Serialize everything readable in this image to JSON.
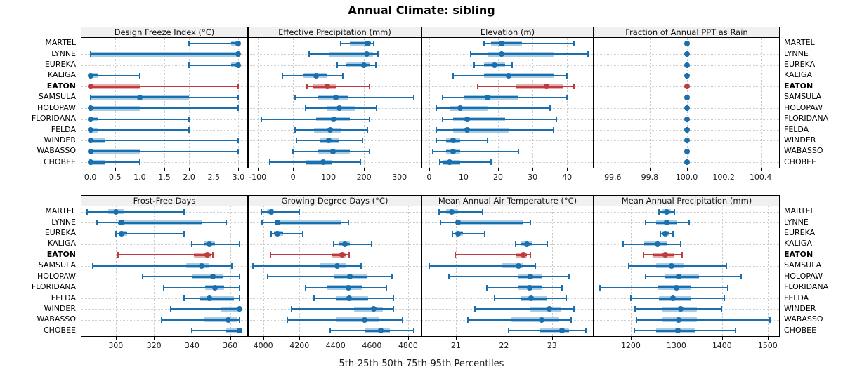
{
  "title": "Annual Climate: sibling",
  "caption": "5th-25th-50th-75th-95th Percentiles",
  "colors": {
    "series_blue": "#1a6fae",
    "series_blue_light": "#a9cce5",
    "highlight_red": "#c03b3d",
    "highlight_red_light": "#e5aeae",
    "strip_bg": "#f0f0f0",
    "grid": "#c9c9c9",
    "border": "#000000"
  },
  "chart_data": {
    "type": "trellis-percentile-dotplot",
    "title": "Annual Climate: sibling",
    "caption": "5th-25th-50th-75th-95th Percentiles",
    "percentile_order": [
      "p5",
      "p25",
      "p50",
      "p75",
      "p95"
    ],
    "legend_position": "none",
    "grid": "dotted",
    "highlight": "EATON",
    "stations": [
      "MARTEL",
      "LYNNE",
      "EUREKA",
      "KALIGA",
      "EATON",
      "SAMSULA",
      "HOLOPAW",
      "FLORIDANA",
      "FELDA",
      "WINDER",
      "WABASSO",
      "CHOBEE"
    ],
    "panels": [
      {
        "title": "Design Freeze Index (°C)",
        "ticks": [
          0,
          0.5,
          1,
          1.5,
          2,
          2.5,
          3
        ],
        "tick_labels": [
          "0.0",
          "0.5",
          "1.0",
          "1.5",
          "2.0",
          "2.5",
          "3.0"
        ],
        "domain": [
          -0.18,
          3.18
        ],
        "values": [
          [
            2,
            2.85,
            3,
            3,
            3
          ],
          [
            0,
            0,
            3,
            3,
            3
          ],
          [
            2,
            2.85,
            3,
            3,
            3
          ],
          [
            0,
            0,
            0,
            0.15,
            1
          ],
          [
            0,
            0,
            0,
            1,
            3
          ],
          [
            0,
            0,
            1,
            2,
            3
          ],
          [
            0,
            0,
            0,
            1,
            3
          ],
          [
            0,
            0,
            0,
            0.15,
            2
          ],
          [
            0,
            0,
            0,
            0.15,
            2
          ],
          [
            0,
            0,
            0,
            0.3,
            3
          ],
          [
            0,
            0,
            0,
            1,
            3
          ],
          [
            0,
            0,
            0,
            0.3,
            1
          ]
        ]
      },
      {
        "title": "Effective Precipitation (mm)",
        "ticks": [
          -100,
          0,
          100,
          200,
          300
        ],
        "tick_labels": [
          "-100",
          "0",
          "100",
          "200",
          "300"
        ],
        "domain": [
          -125,
          360
        ],
        "values": [
          [
            135,
            160,
            210,
            220,
            228
          ],
          [
            45,
            100,
            207,
            225,
            240
          ],
          [
            125,
            150,
            200,
            215,
            233
          ],
          [
            -30,
            30,
            65,
            95,
            140
          ],
          [
            40,
            55,
            97,
            120,
            215
          ],
          [
            5,
            70,
            120,
            155,
            340
          ],
          [
            35,
            95,
            130,
            175,
            235
          ],
          [
            -90,
            65,
            115,
            160,
            215
          ],
          [
            5,
            60,
            105,
            135,
            210
          ],
          [
            10,
            75,
            100,
            130,
            195
          ],
          [
            0,
            70,
            113,
            160,
            215
          ],
          [
            -65,
            35,
            85,
            110,
            190
          ]
        ]
      },
      {
        "title": "Elevation (m)",
        "ticks": [
          0,
          10,
          20,
          30,
          40
        ],
        "tick_labels": [
          "0",
          "10",
          "20",
          "30",
          "40"
        ],
        "domain": [
          -2,
          47.5
        ],
        "values": [
          [
            16,
            18,
            21,
            27,
            42
          ],
          [
            12,
            17,
            21,
            36,
            46
          ],
          [
            13,
            16,
            19,
            22,
            24
          ],
          [
            7,
            16,
            23,
            36,
            40
          ],
          [
            14,
            25,
            34,
            39,
            42
          ],
          [
            4,
            10,
            17,
            26,
            40
          ],
          [
            2,
            6,
            9,
            17,
            35
          ],
          [
            4,
            7,
            11,
            22,
            37
          ],
          [
            2,
            7,
            11,
            23,
            36
          ],
          [
            2,
            5,
            7,
            9,
            17
          ],
          [
            1,
            5,
            7,
            9,
            26
          ],
          [
            3,
            4,
            6,
            9,
            18
          ]
        ]
      },
      {
        "title": "Fraction of Annual PPT as Rain",
        "ticks": [
          99.6,
          99.8,
          100,
          100.2,
          100.4
        ],
        "tick_labels": [
          "99.6",
          "99.8",
          "100.0",
          "100.2",
          "100.4"
        ],
        "domain": [
          99.5,
          100.5
        ],
        "values": [
          [
            100,
            100,
            100,
            100,
            100
          ],
          [
            100,
            100,
            100,
            100,
            100
          ],
          [
            100,
            100,
            100,
            100,
            100
          ],
          [
            100,
            100,
            100,
            100,
            100
          ],
          [
            100,
            100,
            100,
            100,
            100
          ],
          [
            100,
            100,
            100,
            100,
            100
          ],
          [
            100,
            100,
            100,
            100,
            100
          ],
          [
            100,
            100,
            100,
            100,
            100
          ],
          [
            100,
            100,
            100,
            100,
            100
          ],
          [
            100,
            100,
            100,
            100,
            100
          ],
          [
            100,
            100,
            100,
            100,
            100
          ],
          [
            100,
            100,
            100,
            100,
            100
          ]
        ]
      },
      {
        "title": "Frost-Free Days",
        "ticks": [
          300,
          320,
          340,
          360
        ],
        "tick_labels": [
          "300",
          "320",
          "340",
          "360"
        ],
        "domain": [
          282,
          369
        ],
        "values": [
          [
            285,
            296,
            300,
            304,
            336
          ],
          [
            290,
            301,
            303,
            345,
            358
          ],
          [
            300,
            302,
            303,
            306,
            336
          ],
          [
            340,
            346,
            349,
            352,
            365
          ],
          [
            301,
            341,
            348,
            350,
            351
          ],
          [
            288,
            337,
            345,
            349,
            361
          ],
          [
            314,
            340,
            351,
            356,
            365
          ],
          [
            325,
            347,
            352,
            357,
            365
          ],
          [
            336,
            344,
            349,
            362,
            365
          ],
          [
            329,
            355,
            365,
            365,
            365
          ],
          [
            324,
            346,
            359,
            364,
            365
          ],
          [
            340,
            358,
            365,
            365,
            365
          ]
        ]
      },
      {
        "title": "Growing Degree Days (°C)",
        "ticks": [
          4000,
          4200,
          4400,
          4600,
          4800
        ],
        "tick_labels": [
          "4000",
          "4200",
          "4400",
          "4600",
          "4800"
        ],
        "domain": [
          3920,
          4870
        ],
        "values": [
          [
            3990,
            4020,
            4045,
            4060,
            4200
          ],
          [
            3995,
            4068,
            4078,
            4430,
            4470
          ],
          [
            4045,
            4060,
            4078,
            4110,
            4220
          ],
          [
            4390,
            4420,
            4450,
            4480,
            4600
          ],
          [
            4040,
            4380,
            4435,
            4455,
            4475
          ],
          [
            3945,
            4310,
            4410,
            4460,
            4540
          ],
          [
            4025,
            4390,
            4480,
            4570,
            4710
          ],
          [
            4235,
            4350,
            4470,
            4550,
            4680
          ],
          [
            4280,
            4400,
            4475,
            4580,
            4720
          ],
          [
            4155,
            4500,
            4610,
            4660,
            4720
          ],
          [
            4135,
            4400,
            4560,
            4640,
            4770
          ],
          [
            4370,
            4560,
            4650,
            4700,
            4830
          ]
        ]
      },
      {
        "title": "Mean Annual Air Temperature (°C)",
        "ticks": [
          21,
          22,
          23
        ],
        "tick_labels": [
          "21",
          "22",
          "23"
        ],
        "domain": [
          20.3,
          23.85
        ],
        "values": [
          [
            20.65,
            20.8,
            20.92,
            21.05,
            21.55
          ],
          [
            20.68,
            21,
            21.05,
            22.4,
            22.55
          ],
          [
            20.93,
            21,
            21.05,
            21.15,
            21.6
          ],
          [
            22.25,
            22.35,
            22.47,
            22.6,
            22.9
          ],
          [
            20.98,
            22.25,
            22.4,
            22.47,
            22.55
          ],
          [
            20.45,
            21.95,
            22.3,
            22.4,
            22.65
          ],
          [
            20.85,
            22.3,
            22.55,
            22.8,
            23.35
          ],
          [
            21.65,
            22.3,
            22.53,
            22.78,
            23.2
          ],
          [
            21.8,
            22.35,
            22.57,
            22.9,
            23.3
          ],
          [
            21.4,
            22.55,
            22.95,
            23.2,
            23.45
          ],
          [
            21.25,
            22.15,
            22.78,
            23.15,
            23.4
          ],
          [
            22.1,
            22.75,
            23.2,
            23.35,
            23.7
          ]
        ]
      },
      {
        "title": "Mean Annual Precipitation (mm)",
        "ticks": [
          1200,
          1300,
          1400,
          1500
        ],
        "tick_labels": [
          "1200",
          "1300",
          "1400",
          "1500"
        ],
        "domain": [
          1120,
          1525
        ],
        "values": [
          [
            1262,
            1270,
            1278,
            1288,
            1295
          ],
          [
            1232,
            1255,
            1278,
            1300,
            1328
          ],
          [
            1265,
            1270,
            1276,
            1285,
            1293
          ],
          [
            1183,
            1230,
            1258,
            1280,
            1310
          ],
          [
            1228,
            1248,
            1275,
            1295,
            1312
          ],
          [
            1196,
            1255,
            1290,
            1315,
            1410
          ],
          [
            1232,
            1275,
            1305,
            1350,
            1442
          ],
          [
            1132,
            1258,
            1300,
            1332,
            1412
          ],
          [
            1200,
            1262,
            1293,
            1333,
            1405
          ],
          [
            1210,
            1270,
            1310,
            1345,
            1398
          ],
          [
            1212,
            1270,
            1305,
            1345,
            1505
          ],
          [
            1208,
            1255,
            1303,
            1340,
            1430
          ]
        ]
      }
    ]
  }
}
